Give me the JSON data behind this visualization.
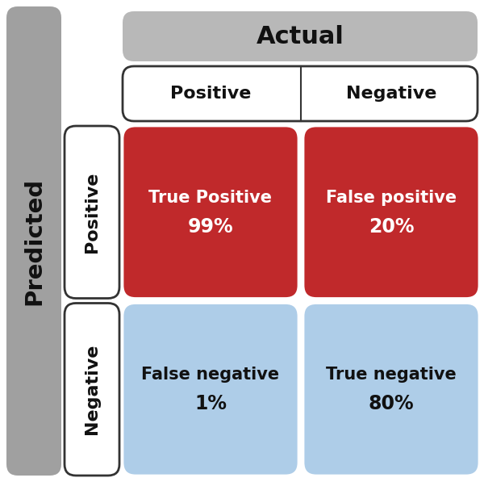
{
  "title": "Actual",
  "predicted_label": "Predicted",
  "actual_pos": "Positive",
  "actual_neg": "Negative",
  "pred_pos": "Positive",
  "pred_neg": "Negative",
  "tp_label": "True Positive",
  "tp_value": "99%",
  "fp_label": "False positive",
  "fp_value": "20%",
  "fn_label": "False negative",
  "fn_value": "1%",
  "tn_label": "True negative",
  "tn_value": "80%",
  "color_red": "#C0292B",
  "color_blue": "#AECDE8",
  "color_gray_dark": "#A0A0A0",
  "color_gray_light": "#B8B8B8",
  "color_white": "#FFFFFF",
  "color_black": "#111111",
  "cell_text_color_red": "#FFFFFF",
  "cell_text_color_blue": "#111111",
  "border_color": "#333333",
  "figsize": [
    6.0,
    5.97
  ],
  "dpi": 100
}
